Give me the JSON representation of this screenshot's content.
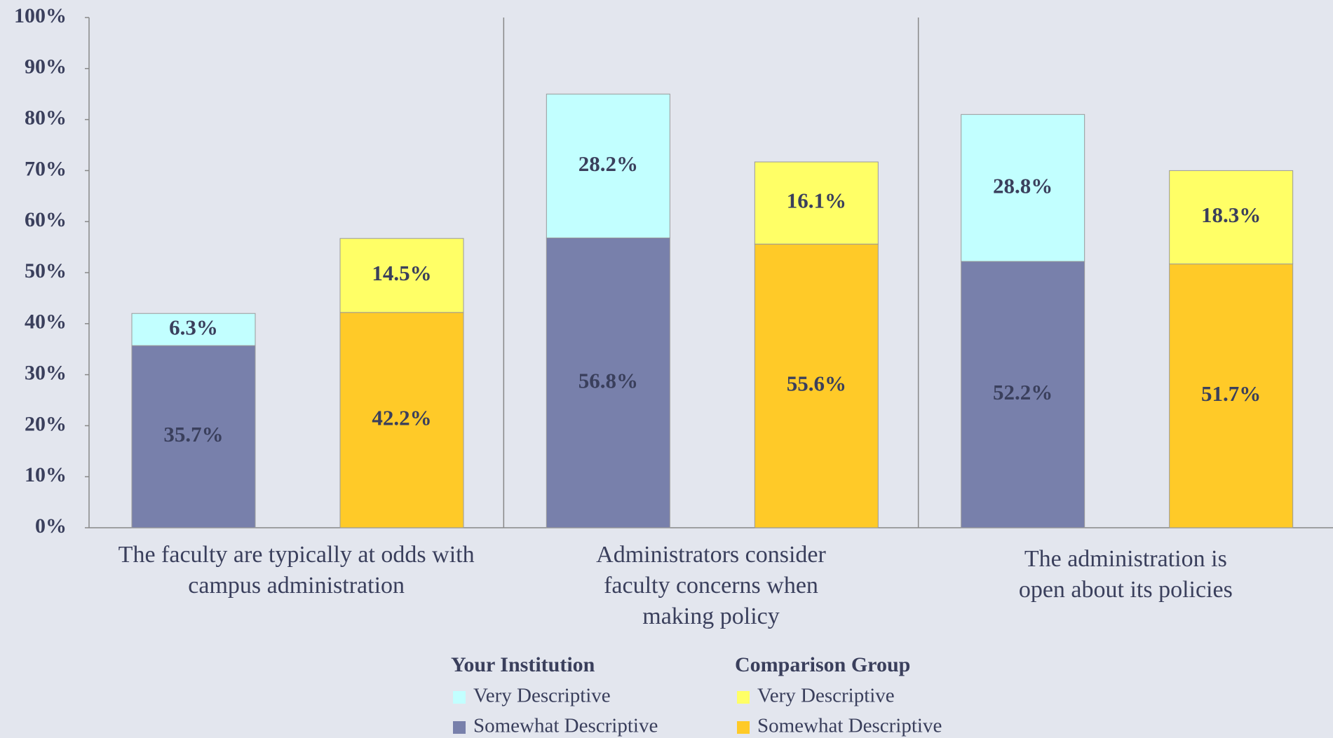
{
  "chart_data": {
    "type": "grouped_stacked_bar",
    "categories": [
      "The faculty are typically at odds with campus administration",
      "Administrators consider faculty concerns when making policy",
      "The administration is open about its policies"
    ],
    "groups": [
      {
        "name": "Your Institution",
        "series": [
          {
            "name": "Somewhat Descriptive",
            "color": "#7880ab",
            "values": [
              35.7,
              56.8,
              52.2
            ],
            "value_labels": [
              "35.7%",
              "56.8%",
              "52.2%"
            ]
          },
          {
            "name": "Very Descriptive",
            "color": "#c2ffff",
            "values": [
              6.3,
              28.2,
              28.8
            ],
            "value_labels": [
              "6.3%",
              "28.2%",
              "28.8%"
            ]
          }
        ]
      },
      {
        "name": "Comparison Group",
        "series": [
          {
            "name": "Somewhat Descriptive",
            "color": "#ffca28",
            "values": [
              42.2,
              55.6,
              51.7
            ],
            "value_labels": [
              "42.2%",
              "55.6%",
              "51.7%"
            ]
          },
          {
            "name": "Very Descriptive",
            "color": "#ffff66",
            "values": [
              14.5,
              16.1,
              18.3
            ],
            "value_labels": [
              "14.5%",
              "16.1%",
              "18.3%"
            ]
          }
        ]
      }
    ],
    "ylim": [
      0,
      100
    ],
    "yticks": [
      {
        "value": 0,
        "label": "0%"
      },
      {
        "value": 10,
        "label": "10%"
      },
      {
        "value": 20,
        "label": "20%"
      },
      {
        "value": 30,
        "label": "30%"
      },
      {
        "value": 40,
        "label": "40%"
      },
      {
        "value": 50,
        "label": "50%"
      },
      {
        "value": 60,
        "label": "60%"
      },
      {
        "value": 70,
        "label": "70%"
      },
      {
        "value": 80,
        "label": "80%"
      },
      {
        "value": 90,
        "label": "90%"
      },
      {
        "value": 100,
        "label": "100%"
      }
    ]
  }
}
